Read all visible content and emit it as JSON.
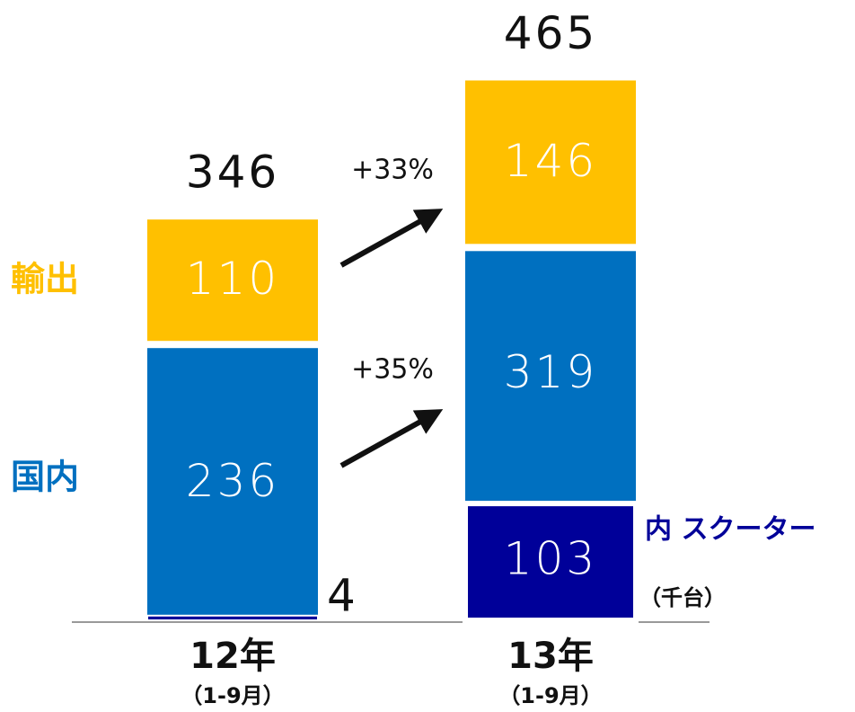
{
  "chart_data": {
    "type": "bar",
    "categories": [
      "12年",
      "13年"
    ],
    "periods": [
      "（1-9月）",
      "（1-9月）"
    ],
    "series": [
      {
        "name": "国内",
        "color": "#0070c0",
        "values": [
          236,
          319
        ]
      },
      {
        "name": "輸出",
        "color": "#ffc000",
        "values": [
          110,
          146
        ]
      }
    ],
    "subset": {
      "name": "内 スクーター",
      "color": "#000099",
      "values": [
        4,
        103
      ]
    },
    "totals": [
      346,
      465
    ],
    "growth": [
      "+35%",
      "+33%"
    ],
    "unit": "（千台）",
    "ylim": [
      0,
      530
    ]
  }
}
